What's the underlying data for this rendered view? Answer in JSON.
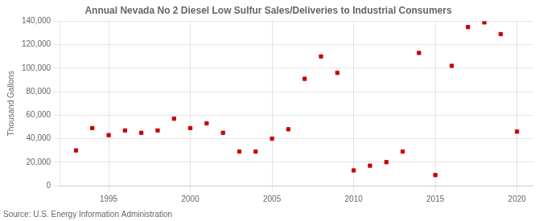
{
  "chart_data": {
    "type": "scatter",
    "title": "Annual Nevada No 2 Diesel Low Sulfur Sales/Deliveries to Industrial Consumers",
    "ylabel": "Thousand Gallons",
    "annotations": [
      "Source: U.S. Energy Information Administration"
    ],
    "x": [
      1993,
      1994,
      1995,
      1996,
      1997,
      1998,
      1999,
      2000,
      2001,
      2002,
      2003,
      2004,
      2005,
      2006,
      2007,
      2008,
      2009,
      2010,
      2011,
      2012,
      2013,
      2014,
      2015,
      2016,
      2017,
      2018,
      2019,
      2020
    ],
    "values": [
      30000,
      49000,
      43000,
      47000,
      45000,
      47000,
      57000,
      49000,
      53000,
      45000,
      29000,
      29000,
      40000,
      48000,
      91000,
      110000,
      96000,
      13000,
      17000,
      20000,
      29000,
      113000,
      9000,
      102000,
      135000,
      139000,
      129000,
      46000
    ],
    "color": "#cc0000",
    "marker": "square",
    "xlim": [
      1992,
      2021
    ],
    "xticks": [
      1995,
      2000,
      2005,
      2010,
      2015,
      2020
    ],
    "ylim": [
      0,
      140000
    ],
    "yticks": [
      0,
      {
        "value": 20000,
        "label": "20,000"
      },
      {
        "value": 40000,
        "label": "40,000"
      },
      {
        "value": 60000,
        "label": "60,000"
      },
      {
        "value": 80000,
        "label": "80,000"
      },
      {
        "value": 100000,
        "label": "100,000"
      },
      {
        "value": 120000,
        "label": "120,000"
      },
      {
        "value": 140000,
        "label": "140,000"
      }
    ],
    "grid": true
  }
}
